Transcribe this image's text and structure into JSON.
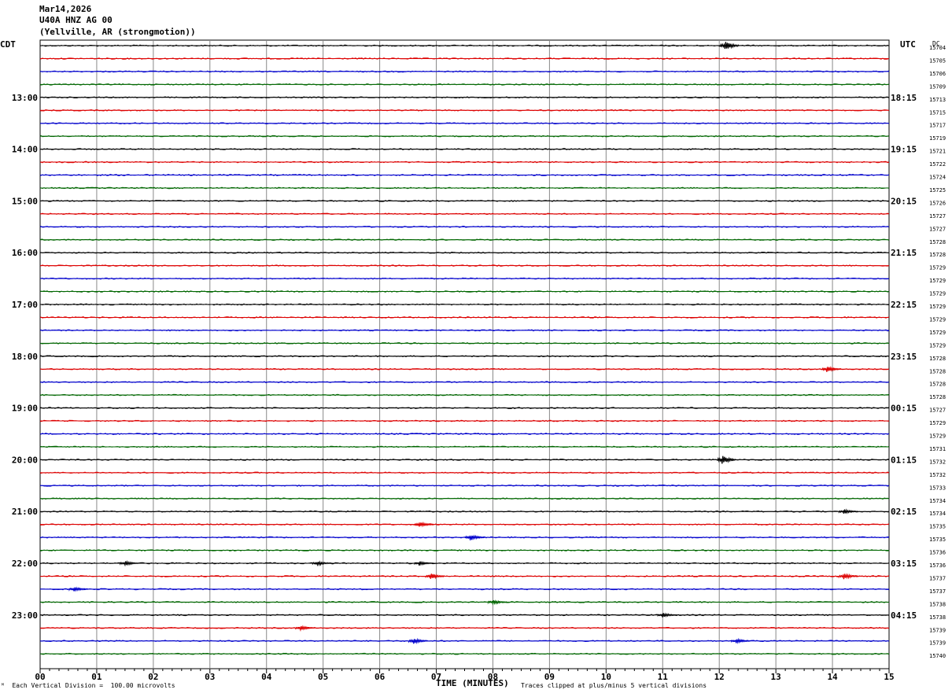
{
  "header": {
    "date": "Mar14,2026",
    "station": "U40A HNZ AG 00",
    "location": "(Yellville, AR (strongmotion))"
  },
  "chart_data": {
    "type": "line",
    "title": "U40A HNZ AG 00",
    "left_axis_label": "CDT",
    "right_axis_label": "UTC",
    "dc_label": "DC",
    "xlabel": "TIME (MINUTES)",
    "x_ticks": [
      "00",
      "01",
      "02",
      "03",
      "04",
      "05",
      "06",
      "07",
      "08",
      "09",
      "10",
      "11",
      "12",
      "13",
      "14",
      "15"
    ],
    "xlim": [
      0,
      15
    ],
    "left_hour_labels": [
      "13:00",
      "14:00",
      "15:00",
      "16:00",
      "17:00",
      "18:00",
      "19:00",
      "20:00",
      "21:00",
      "22:00",
      "23:00"
    ],
    "right_hour_labels": [
      "18:15",
      "19:15",
      "20:15",
      "21:15",
      "22:15",
      "23:15",
      "00:15",
      "01:15",
      "02:15",
      "03:15",
      "04:15"
    ],
    "trace_colors": [
      "#000000",
      "#dd0000",
      "#0000cc",
      "#006600"
    ],
    "dc_values": [
      "15704",
      "15705",
      "15706",
      "15709",
      "15713",
      "15715",
      "15717",
      "15719",
      "15721",
      "15722",
      "15724",
      "15725",
      "15726",
      "15727",
      "15727",
      "15728",
      "15728",
      "15729",
      "15729",
      "15729",
      "15729",
      "15729",
      "15729",
      "15729",
      "15728",
      "15728",
      "15728",
      "15728",
      "15727",
      "15729",
      "15729",
      "15731",
      "15732",
      "15732",
      "15733",
      "15734",
      "15734",
      "15735",
      "15735",
      "15736",
      "15736",
      "15737",
      "15737",
      "15738",
      "15738",
      "15739",
      "15739",
      "15740"
    ],
    "events": [
      {
        "trace": 0,
        "minute": 12.1,
        "amplitude": 6
      },
      {
        "trace": 25,
        "minute": 13.9,
        "amplitude": 4
      },
      {
        "trace": 32,
        "minute": 12.05,
        "amplitude": 6
      },
      {
        "trace": 36,
        "minute": 14.2,
        "amplitude": 3
      },
      {
        "trace": 37,
        "minute": 6.7,
        "amplitude": 4
      },
      {
        "trace": 38,
        "minute": 7.6,
        "amplitude": 4
      },
      {
        "trace": 40,
        "minute": 1.5,
        "amplitude": 3
      },
      {
        "trace": 40,
        "minute": 4.9,
        "amplitude": 3
      },
      {
        "trace": 40,
        "minute": 6.7,
        "amplitude": 3
      },
      {
        "trace": 41,
        "minute": 6.9,
        "amplitude": 4
      },
      {
        "trace": 41,
        "minute": 14.2,
        "amplitude": 4
      },
      {
        "trace": 42,
        "minute": 0.6,
        "amplitude": 3
      },
      {
        "trace": 43,
        "minute": 8.0,
        "amplitude": 3
      },
      {
        "trace": 44,
        "minute": 11.0,
        "amplitude": 3
      },
      {
        "trace": 45,
        "minute": 4.6,
        "amplitude": 3
      },
      {
        "trace": 46,
        "minute": 6.6,
        "amplitude": 4
      },
      {
        "trace": 46,
        "minute": 12.3,
        "amplitude": 3
      }
    ]
  },
  "footer": {
    "scale": "Each Vertical Division =  100.00 microvolts",
    "clip": "Traces clipped at plus/minus 5 vertical divisions"
  }
}
